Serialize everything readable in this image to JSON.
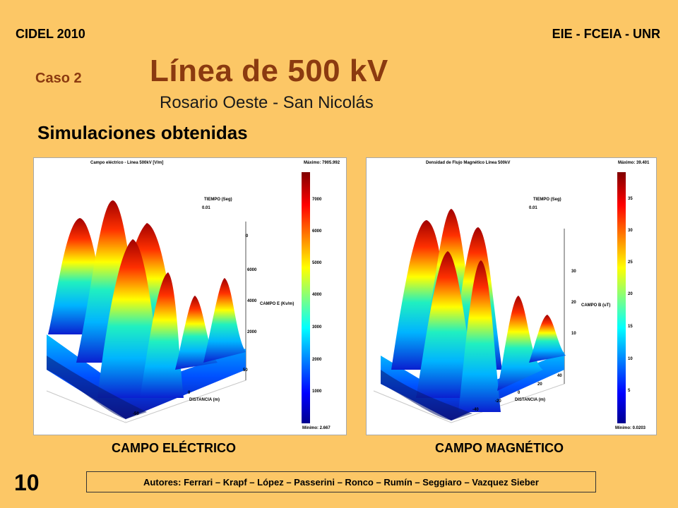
{
  "header": {
    "left": "CIDEL 2010",
    "right": "EIE - FCEIA - UNR"
  },
  "case_label": "Caso 2",
  "title": "Línea de 500 kV",
  "subtitle": "Rosario Oeste - San Nicolás",
  "section_title": "Simulaciones obtenidas",
  "plots": {
    "electric": {
      "title": "Campo eléctrico - Línea 500kV [V/m]",
      "max_label": "Máximo: 7905.992",
      "min_label": "Mínimo: 2.667",
      "time_label": "TIEMPO (Seg)",
      "time_value": "0.01",
      "z_axis_label": "CAMPO E (Kv/m)",
      "x_axis_label": "DISTANCIA (m)",
      "z_ticks": [
        "0",
        "2000",
        "4000",
        "6000"
      ],
      "x_ticks": [
        "-50",
        "0",
        "50"
      ],
      "colorbar_ticks": [
        "7000",
        "6000",
        "5000",
        "4000",
        "3000",
        "2000",
        "1000"
      ],
      "caption": "CAMPO ELÉCTRICO"
    },
    "magnetic": {
      "title": "Densidad de Flujo Magnético Línea 500kV",
      "max_label": "Máximo: 39.401",
      "min_label": "Mínimo: 0.0203",
      "time_label": "TIEMPO (Seg)",
      "time_value": "0.01",
      "z_axis_label": "CAMPO B (uT)",
      "x_axis_label": "DISTANCIA (m)",
      "z_ticks": [
        "10",
        "20",
        "30"
      ],
      "x_ticks": [
        "-40",
        "-20",
        "0",
        "20",
        "40"
      ],
      "colorbar_ticks": [
        "35",
        "30",
        "25",
        "20",
        "15",
        "10",
        "5"
      ],
      "caption": "CAMPO MAGNÉTICO"
    }
  },
  "page_number": "10",
  "authors": "Autores: Ferrari – Krapf – López – Passerini – Ronco – Rumín – Seggiaro – Vazquez Sieber"
}
